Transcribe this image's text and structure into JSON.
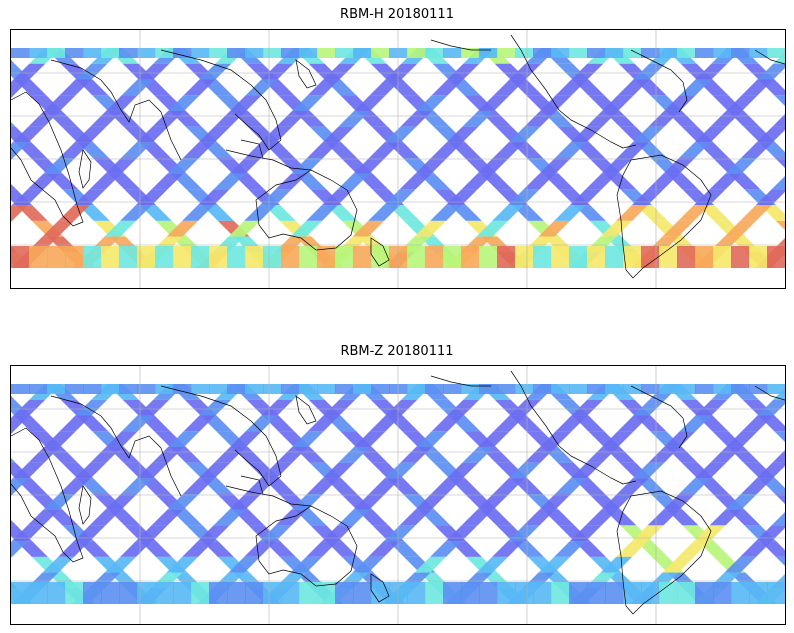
{
  "panels": [
    {
      "title": "RBM-H 20180111",
      "intensity": "high"
    },
    {
      "title": "RBM-Z 20180111",
      "intensity": "low"
    }
  ],
  "colormap": [
    "#6a6ef0",
    "#5b8ff2",
    "#58b8f5",
    "#6ee8e0",
    "#b7f57a",
    "#f5e86a",
    "#f7a85a",
    "#e06a5a"
  ],
  "gridlines": "on",
  "swath_pattern": "diagonal satellite swaths over ocean (crosshatch)"
}
